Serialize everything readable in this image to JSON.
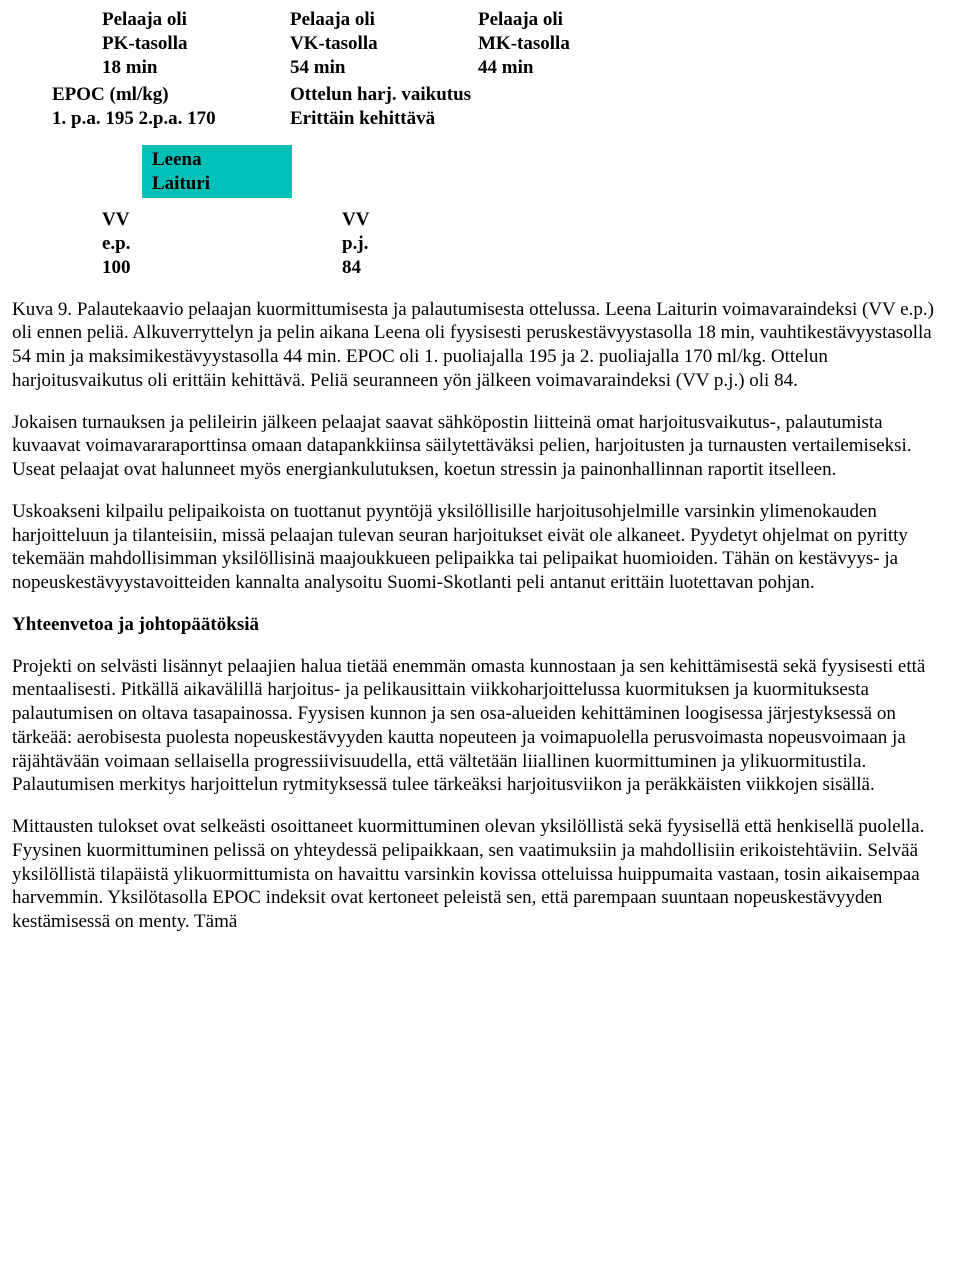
{
  "colors": {
    "highlight_bg": "#00c0b8",
    "page_bg": "#ffffff",
    "text": "#000000"
  },
  "typography": {
    "font_family": "Times New Roman",
    "body_fontsize_pt": 14,
    "bold_weight": 700
  },
  "top": {
    "cols": [
      {
        "l1": "Pelaaja oli",
        "l2": "PK-tasolla",
        "l3": "18 min"
      },
      {
        "l1": "Pelaaja oli",
        "l2": "VK-tasolla",
        "l3": "54 min"
      },
      {
        "l1": "Pelaaja oli",
        "l2": "MK-tasolla",
        "l3": "44 min"
      }
    ],
    "row2": {
      "left": {
        "l1": "EPOC (ml/kg)",
        "l2": "1. p.a. 195 2.p.a. 170"
      },
      "right": {
        "l1": "Ottelun harj. vaikutus",
        "l2": "Erittäin kehittävä"
      }
    }
  },
  "name_block": {
    "first": "Leena",
    "last": "Laituri"
  },
  "pair": {
    "left": {
      "l1": "VV",
      "l2": "e.p.",
      "l3": "100"
    },
    "right": {
      "l1": "VV",
      "l2": "p.j.",
      "l3": "84"
    }
  },
  "paragraphs": {
    "p1": "Kuva 9. Palautekaavio pelaajan kuormittumisesta ja palautumisesta ottelussa. Leena Laiturin voimavaraindeksi (VV e.p.) oli ennen peliä. Alkuverryttelyn ja pelin aikana Leena oli fyysisesti peruskestävyystasolla 18 min, vauhtikestävyystasolla 54 min ja maksimikestävyystasolla 44 min. EPOC oli 1. puoliajalla 195 ja 2. puoliajalla 170 ml/kg. Ottelun harjoitusvaikutus oli erittäin kehittävä. Peliä seuranneen yön jälkeen voimavaraindeksi (VV p.j.) oli 84.",
    "p2": "Jokaisen turnauksen ja pelileirin jälkeen pelaajat saavat sähköpostin liitteinä omat harjoitusvaikutus-, palautumista kuvaavat voimavararaporttinsa omaan datapankkiinsa säilytettäväksi pelien, harjoitusten ja turnausten vertailemiseksi. Useat pelaajat ovat halunneet myös energiankulutuksen, koetun stressin ja painonhallinnan raportit itselleen.",
    "p3": "Uskoakseni kilpailu pelipaikoista on tuottanut pyyntöjä yksilöllisille harjoitusohjelmille varsinkin ylimenokauden harjoitteluun ja tilanteisiin, missä pelaajan tulevan seuran harjoitukset eivät ole alkaneet. Pyydetyt ohjelmat on pyritty tekemään mahdollisimman yksilöllisinä maajoukkueen pelipaikka tai pelipaikat huomioiden. Tähän on kestävyys- ja nopeuskestävyystavoitteiden kannalta analysoitu Suomi-Skotlanti peli antanut erittäin luotettavan pohjan.",
    "heading": "Yhteenvetoa ja johtopäätöksiä",
    "p4": "Projekti on selvästi lisännyt pelaajien halua tietää enemmän omasta kunnostaan ja sen kehittämisestä sekä fyysisesti että mentaalisesti. Pitkällä aikavälillä harjoitus- ja pelikausittain viikkoharjoittelussa kuormituksen ja kuormituksesta palautumisen on oltava tasapainossa. Fyysisen kunnon ja sen osa-alueiden kehittäminen loogisessa järjestyksessä on tärkeää: aerobisesta puolesta nopeuskestävyyden kautta nopeuteen ja voimapuolella perusvoimasta nopeusvoimaan ja räjähtävään voimaan sellaisella progressiivisuudella, että vältetään liiallinen kuormittuminen ja ylikuormitustila. Palautumisen merkitys harjoittelun rytmityksessä tulee tärkeäksi harjoitusviikon ja peräkkäisten viikkojen sisällä.",
    "p5": "Mittausten tulokset ovat selkeästi osoittaneet kuormittuminen olevan yksilöllistä sekä fyysisellä että henkisellä puolella. Fyysinen kuormittuminen pelissä on yhteydessä pelipaikkaan, sen vaatimuksiin ja mahdollisiin erikoistehtäviin. Selvää yksilöllistä tilapäistä ylikuormittumista on havaittu varsinkin kovissa otteluissa huippumaita vastaan, tosin aikaisempaa harvemmin. Yksilötasolla EPOC indeksit ovat kertoneet peleistä sen, että parempaan suuntaan nopeuskestävyyden kestämisessä on menty. Tämä"
  }
}
